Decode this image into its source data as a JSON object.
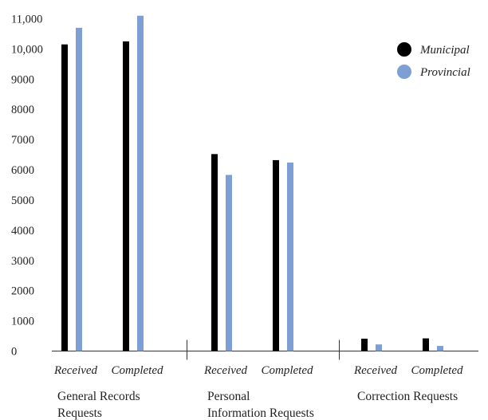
{
  "chart_data": {
    "type": "bar",
    "groups": [
      {
        "label_lines": [
          "General Records",
          "Requests"
        ],
        "categories": [
          "Received",
          "Completed"
        ]
      },
      {
        "label_lines": [
          "Personal",
          "Information Requests"
        ],
        "categories": [
          "Received",
          "Completed"
        ]
      },
      {
        "label_lines": [
          "Correction Requests"
        ],
        "categories": [
          "Received",
          "Completed"
        ]
      }
    ],
    "series": [
      {
        "name": "Municipal",
        "color": "#000000",
        "values": [
          10150,
          10250,
          6520,
          6320,
          410,
          420
        ]
      },
      {
        "name": "Provincial",
        "color": "#7d9fd3",
        "values": [
          10700,
          11100,
          5830,
          6240,
          220,
          170
        ]
      }
    ],
    "yticks": [
      "0",
      "1000",
      "2000",
      "3000",
      "4000",
      "5000",
      "6000",
      "7000",
      "8000",
      "9000",
      "10,000",
      "11,000"
    ],
    "ylim": [
      0,
      11000
    ],
    "legend_position": "top-right",
    "title": "",
    "xlabel": "",
    "ylabel": ""
  }
}
